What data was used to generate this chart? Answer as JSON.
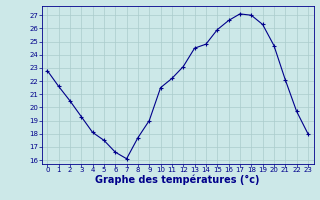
{
  "x": [
    0,
    1,
    2,
    3,
    4,
    5,
    6,
    7,
    8,
    9,
    10,
    11,
    12,
    13,
    14,
    15,
    16,
    17,
    18,
    19,
    20,
    21,
    22,
    23
  ],
  "y": [
    22.8,
    21.6,
    20.5,
    19.3,
    18.1,
    17.5,
    16.6,
    16.1,
    17.7,
    19.0,
    21.5,
    22.2,
    23.1,
    24.5,
    24.8,
    25.9,
    26.6,
    27.1,
    27.0,
    26.3,
    24.7,
    22.1,
    19.7,
    18.0
  ],
  "xlabel": "Graphe des températures (°c)",
  "ylim": [
    15.7,
    27.7
  ],
  "xlim": [
    -0.5,
    23.5
  ],
  "yticks": [
    16,
    17,
    18,
    19,
    20,
    21,
    22,
    23,
    24,
    25,
    26,
    27
  ],
  "xticks": [
    0,
    1,
    2,
    3,
    4,
    5,
    6,
    7,
    8,
    9,
    10,
    11,
    12,
    13,
    14,
    15,
    16,
    17,
    18,
    19,
    20,
    21,
    22,
    23
  ],
  "line_color": "#00008b",
  "marker_color": "#00008b",
  "bg_color": "#cce8e8",
  "grid_color": "#aacccc",
  "xlabel_color": "#00008b",
  "tick_fontsize": 5.0,
  "xlabel_fontsize": 7.0
}
